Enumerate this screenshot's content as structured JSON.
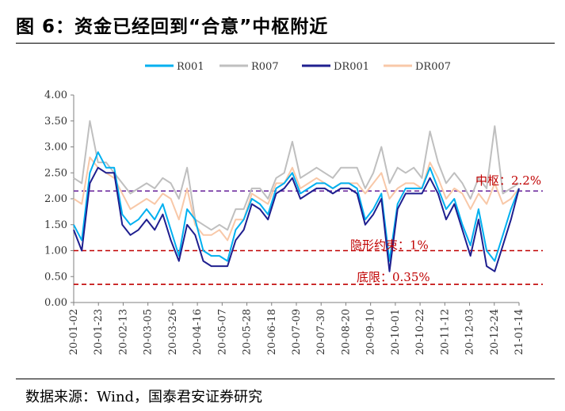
{
  "figure": {
    "title": "图 6：资金已经回到“合意”中枢附近",
    "source": "数据来源：Wind，国泰君安证券研究"
  },
  "chart_data": {
    "type": "line",
    "title": "",
    "xlabel": "",
    "ylabel": "",
    "ylim": [
      0,
      4
    ],
    "yticks": [
      "0.00",
      "0.50",
      "1.00",
      "1.50",
      "2.00",
      "2.50",
      "3.00",
      "3.50",
      "4.00"
    ],
    "x_tick_labels": [
      "20-01-02",
      "20-01-23",
      "20-02-13",
      "20-03-05",
      "20-03-26",
      "20-04-16",
      "20-05-07",
      "20-05-28",
      "20-06-18",
      "20-07-09",
      "20-07-30",
      "20-08-20",
      "20-09-10",
      "20-10-01",
      "20-10-22",
      "20-11-12",
      "20-12-03",
      "20-12-24",
      "21-01-14"
    ],
    "grid": false,
    "legend_position": "top",
    "x": [
      "20-01-02",
      "20-01-09",
      "20-01-16",
      "20-01-23",
      "20-01-30",
      "20-02-06",
      "20-02-13",
      "20-02-20",
      "20-02-27",
      "20-03-05",
      "20-03-12",
      "20-03-19",
      "20-03-26",
      "20-04-02",
      "20-04-09",
      "20-04-16",
      "20-04-23",
      "20-04-30",
      "20-05-07",
      "20-05-14",
      "20-05-21",
      "20-05-28",
      "20-06-04",
      "20-06-11",
      "20-06-18",
      "20-06-25",
      "20-07-02",
      "20-07-09",
      "20-07-16",
      "20-07-23",
      "20-07-30",
      "20-08-06",
      "20-08-13",
      "20-08-20",
      "20-08-27",
      "20-09-03",
      "20-09-10",
      "20-09-17",
      "20-09-24",
      "20-10-01",
      "20-10-08",
      "20-10-15",
      "20-10-22",
      "20-10-29",
      "20-11-05",
      "20-11-12",
      "20-11-19",
      "20-11-26",
      "20-12-03",
      "20-12-10",
      "20-12-17",
      "20-12-24",
      "20-12-31",
      "21-01-07",
      "21-01-14",
      "21-01-21"
    ],
    "series": [
      {
        "name": "R001",
        "color": "#00b0f0",
        "values": [
          1.5,
          1.2,
          2.5,
          2.9,
          2.6,
          2.6,
          1.7,
          1.5,
          1.6,
          1.8,
          1.6,
          1.9,
          1.4,
          0.9,
          1.8,
          1.6,
          1.0,
          0.9,
          0.9,
          0.8,
          1.4,
          1.6,
          2.0,
          1.9,
          1.7,
          2.2,
          2.3,
          2.5,
          2.1,
          2.2,
          2.3,
          2.3,
          2.2,
          2.3,
          2.3,
          2.2,
          1.6,
          1.8,
          2.1,
          0.8,
          1.9,
          2.2,
          2.2,
          2.2,
          2.6,
          2.2,
          1.8,
          2.0,
          1.5,
          1.1,
          1.8,
          1.0,
          0.8,
          1.3,
          1.8,
          2.2
        ]
      },
      {
        "name": "R007",
        "color": "#bfbfbf",
        "values": [
          2.4,
          2.3,
          3.5,
          2.7,
          2.7,
          2.5,
          2.3,
          2.1,
          2.2,
          2.3,
          2.2,
          2.4,
          2.3,
          2.0,
          2.6,
          1.6,
          1.5,
          1.4,
          1.5,
          1.4,
          1.8,
          1.8,
          2.2,
          2.2,
          2.0,
          2.4,
          2.5,
          3.1,
          2.4,
          2.5,
          2.6,
          2.5,
          2.4,
          2.6,
          2.6,
          2.6,
          2.2,
          2.5,
          3.0,
          2.3,
          2.6,
          2.5,
          2.6,
          2.4,
          3.3,
          2.7,
          2.3,
          2.5,
          2.3,
          2.0,
          2.4,
          2.2,
          3.4,
          2.1,
          2.2,
          2.3
        ]
      },
      {
        "name": "DR001",
        "color": "#1f1f8f",
        "values": [
          1.4,
          1.0,
          2.3,
          2.6,
          2.5,
          2.5,
          1.5,
          1.3,
          1.4,
          1.6,
          1.4,
          1.7,
          1.2,
          0.8,
          1.5,
          1.3,
          0.8,
          0.7,
          0.7,
          0.7,
          1.2,
          1.4,
          1.9,
          1.8,
          1.6,
          2.1,
          2.2,
          2.4,
          2.0,
          2.1,
          2.2,
          2.2,
          2.1,
          2.2,
          2.2,
          2.1,
          1.5,
          1.7,
          2.0,
          0.6,
          1.8,
          2.1,
          2.1,
          2.1,
          2.4,
          2.1,
          1.6,
          1.9,
          1.4,
          0.9,
          1.6,
          0.7,
          0.6,
          1.1,
          1.6,
          2.2
        ]
      },
      {
        "name": "DR007",
        "color": "#f8c8a8",
        "values": [
          2.0,
          1.9,
          2.8,
          2.6,
          2.5,
          2.4,
          2.1,
          1.8,
          1.9,
          2.0,
          1.9,
          2.1,
          2.0,
          1.6,
          2.2,
          1.5,
          1.3,
          1.3,
          1.4,
          1.2,
          1.6,
          1.6,
          2.1,
          2.0,
          1.9,
          2.3,
          2.3,
          2.6,
          2.2,
          2.3,
          2.4,
          2.3,
          2.2,
          2.3,
          2.3,
          2.3,
          2.1,
          2.3,
          2.5,
          2.0,
          2.2,
          2.3,
          2.3,
          2.2,
          2.7,
          2.4,
          2.0,
          2.2,
          2.1,
          1.8,
          2.1,
          1.9,
          2.3,
          1.9,
          2.0,
          2.2
        ]
      }
    ],
    "reference_lines": [
      {
        "value": 2.15,
        "label": "中枢：2.2%",
        "color": "#7030a0"
      },
      {
        "value": 1.0,
        "label": "隐形约束：1%",
        "color": "#c00000"
      },
      {
        "value": 0.35,
        "label": "底限：0.35%",
        "color": "#c00000"
      }
    ]
  }
}
